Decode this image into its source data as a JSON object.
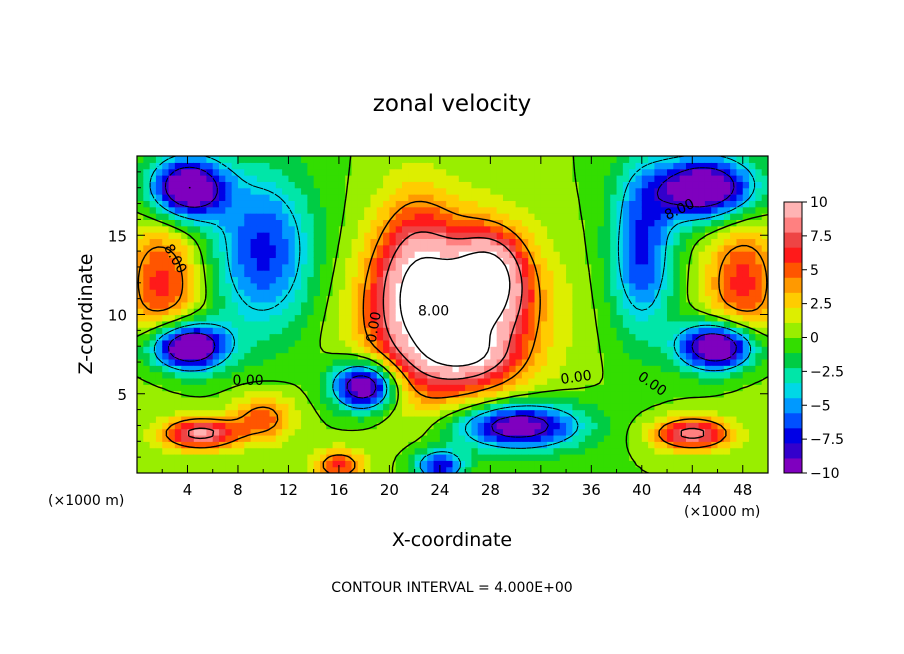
{
  "chart_data": {
    "type": "heatmap",
    "title": "zonal velocity",
    "xlabel": "X-coordinate",
    "ylabel": "Z-coordinate",
    "x_units": "(×1000 m)",
    "z_units": "(×1000 m)",
    "xlim": [
      0,
      50
    ],
    "ylim": [
      0,
      20
    ],
    "x_ticks": [
      "4",
      "8",
      "12",
      "16",
      "20",
      "24",
      "28",
      "32",
      "36",
      "40",
      "44",
      "48"
    ],
    "y_ticks": [
      "5",
      "10",
      "15"
    ],
    "colorbar": {
      "min": -10,
      "max": 10,
      "ticks": [
        "10",
        "7.5",
        "5",
        "2.5",
        "0",
        "−2.5",
        "−5",
        "−7.5",
        "−10"
      ],
      "colors": [
        "#7f00bf",
        "#3300cc",
        "#0000e6",
        "#0050ff",
        "#0099ff",
        "#00d8e6",
        "#00e6a8",
        "#00cc44",
        "#33dd00",
        "#99ee00",
        "#ddee00",
        "#ffcc00",
        "#ff9900",
        "#ff5500",
        "#ff1a1a",
        "#ee4444",
        "#ff8080",
        "#ffb3b3"
      ]
    },
    "contour_interval_label": "CONTOUR INTERVAL =  4.000E+00",
    "contour_labels": [
      "8.00",
      "8.00",
      "8.00",
      "0.00",
      "0.00",
      "0.00",
      "0.00"
    ],
    "field_blobs": [
      {
        "x": 25,
        "z": 10,
        "sx": 6,
        "sz": 5,
        "amp": 14
      },
      {
        "x": 28,
        "z": 12.5,
        "sx": 2.5,
        "sz": 2.5,
        "amp": 8
      },
      {
        "x": 22,
        "z": 13,
        "sx": 3,
        "sz": 5,
        "amp": 5
      },
      {
        "x": 26,
        "z": 7.5,
        "sx": 3,
        "sz": 1.2,
        "amp": 4
      },
      {
        "x": 2,
        "z": 12,
        "sx": 3,
        "sz": 4,
        "amp": 6
      },
      {
        "x": 48,
        "z": 12,
        "sx": 3,
        "sz": 4,
        "amp": 6
      },
      {
        "x": 4,
        "z": 8,
        "sx": 3,
        "sz": 1.5,
        "amp": -13
      },
      {
        "x": 4,
        "z": 18,
        "sx": 3,
        "sz": 2,
        "amp": -12
      },
      {
        "x": 46,
        "z": 8,
        "sx": 3,
        "sz": 1.5,
        "amp": -13
      },
      {
        "x": 45,
        "z": 18,
        "sx": 4,
        "sz": 2,
        "amp": -12
      },
      {
        "x": 18,
        "z": 5.5,
        "sx": 2.5,
        "sz": 1.5,
        "amp": -12
      },
      {
        "x": 30,
        "z": 3,
        "sx": 5,
        "sz": 1.5,
        "amp": -11
      },
      {
        "x": 24,
        "z": 0.5,
        "sx": 2,
        "sz": 1,
        "amp": -8
      },
      {
        "x": 10,
        "z": 14,
        "sx": 4,
        "sz": 5,
        "amp": -7
      },
      {
        "x": 40,
        "z": 14,
        "sx": 2.5,
        "sz": 5,
        "amp": -7
      },
      {
        "x": 5,
        "z": 2.5,
        "sx": 3,
        "sz": 1,
        "amp": 9
      },
      {
        "x": 44,
        "z": 2.5,
        "sx": 3,
        "sz": 1,
        "amp": 9
      },
      {
        "x": 10,
        "z": 3.5,
        "sx": 2.5,
        "sz": 1.5,
        "amp": 5
      },
      {
        "x": 16,
        "z": 0.5,
        "sx": 2,
        "sz": 1,
        "amp": 6
      }
    ]
  }
}
